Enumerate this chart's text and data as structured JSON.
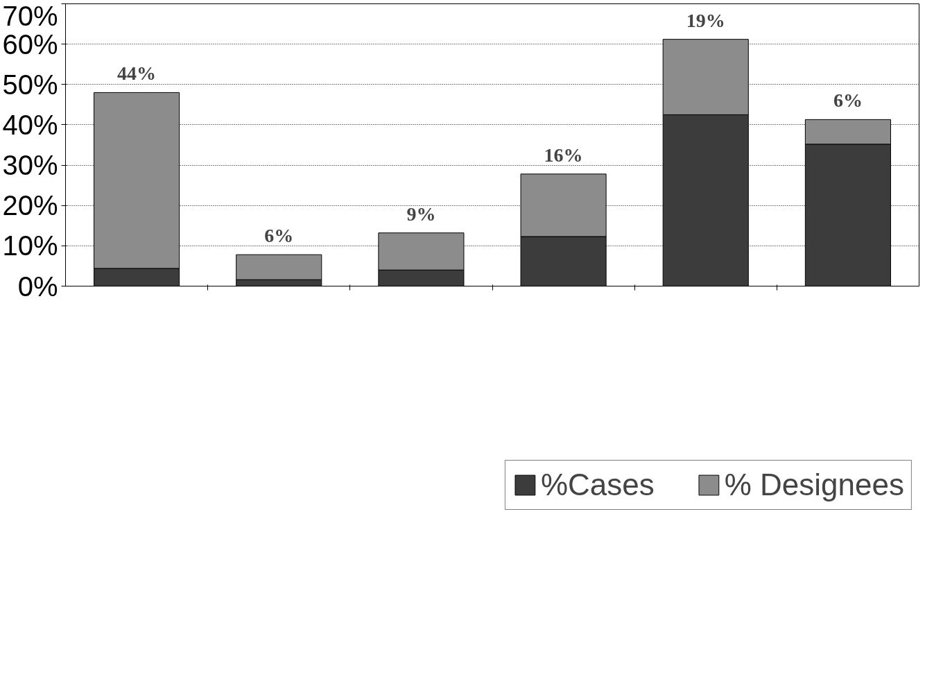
{
  "chart_data": {
    "type": "bar",
    "stacked": true,
    "categories": [
      null,
      null,
      null,
      null,
      null,
      null
    ],
    "series": [
      {
        "name": "%Cases",
        "color": "#3c3c3c",
        "values": [
          4.4,
          1.6,
          4.0,
          12.3,
          42.5,
          35.2
        ]
      },
      {
        "name": "% Designees",
        "color": "#8c8c8c",
        "values": [
          43.6,
          6.2,
          9.2,
          15.5,
          18.7,
          6.1
        ],
        "value_labels": [
          "44%",
          "6%",
          "9%",
          "16%",
          "19%",
          "6%"
        ]
      }
    ],
    "ylim": [
      0,
      70
    ],
    "yticks": [
      {
        "value": 0,
        "label": "0%"
      },
      {
        "value": 10,
        "label": "10%"
      },
      {
        "value": 20,
        "label": "20%"
      },
      {
        "value": 30,
        "label": "30%"
      },
      {
        "value": 40,
        "label": "40%"
      },
      {
        "value": 50,
        "label": "50%"
      },
      {
        "value": 60,
        "label": "60%"
      },
      {
        "value": 70,
        "label": "70%"
      }
    ],
    "grid": "y",
    "legend": "bottom"
  }
}
